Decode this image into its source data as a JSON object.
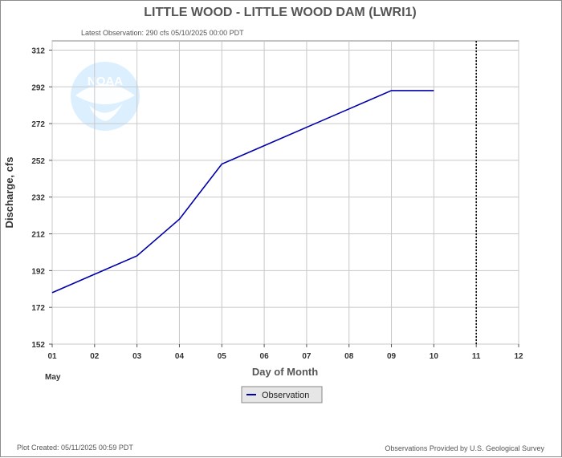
{
  "header": {
    "title": "LITTLE WOOD - LITTLE WOOD DAM  (LWRI1)",
    "latest_observation": "Latest Observation: 290 cfs 05/10/2025 00:00 PDT"
  },
  "logo": {
    "text": "NOAA"
  },
  "footer": {
    "plot_created": "Plot Created: 05/11/2025 00:59 PDT",
    "provider": "Observations Provided by U.S. Geological Survey"
  },
  "legend": {
    "observation_label": "Observation"
  },
  "colors": {
    "observation": "#0000aa",
    "grid": "#c8c8c8",
    "current_marker": "#000000"
  },
  "chart_data": {
    "type": "line",
    "xlabel": "Day of Month",
    "xlabel_month": "May",
    "ylabel": "Discharge, cfs",
    "x_ticks": [
      "01",
      "02",
      "03",
      "04",
      "05",
      "06",
      "07",
      "08",
      "09",
      "10",
      "11",
      "12"
    ],
    "y_ticks": [
      "152",
      "172",
      "192",
      "212",
      "232",
      "252",
      "272",
      "292",
      "312"
    ],
    "xlim": [
      1,
      12
    ],
    "ylim": [
      152,
      317
    ],
    "grid": true,
    "current_time_marker_day": 11,
    "series": [
      {
        "name": "Observation",
        "x": [
          1,
          2,
          3,
          4,
          5,
          6,
          7,
          8,
          9,
          10
        ],
        "y": [
          180,
          190,
          200,
          220,
          250,
          260,
          270,
          280,
          290,
          290
        ]
      }
    ]
  }
}
